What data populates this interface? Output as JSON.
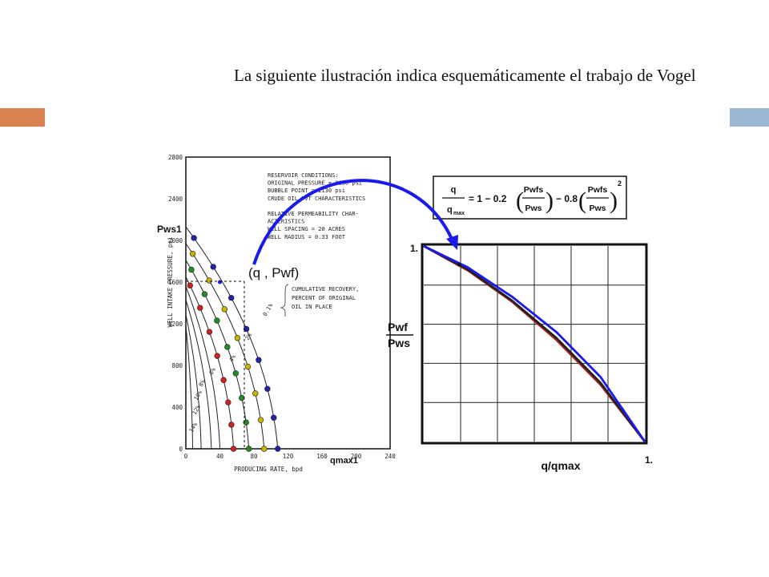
{
  "slide": {
    "title": "La siguiente ilustración indica esquemáticamente el trabajo de Vogel",
    "accent_left": "#d9814f",
    "accent_right": "#9ab7d3"
  },
  "left_chart_text": {
    "y_label_top": "Pws1",
    "point_label": "(q , Pwf)",
    "x_end_label": "qmax1",
    "y_axis_title": "WELL INTAKE PRESSURE, psi",
    "x_axis_title": "PRODUCING RATE, bpd",
    "reservoir": [
      "RESERVOIR CONDITIONS:",
      "ORIGINAL PRESSURE = 2130 psi",
      "BUBBLE POINT = 2130 psi",
      "CRUDE OIL PVT CHARACTERISTICS",
      "",
      "RELATIVE PERMEABILITY CHAR-",
      "ACTERISTICS",
      "WELL SPACING = 20 ACRES",
      "WELL RADIUS = 0.33 FOOT"
    ],
    "cumulative": [
      "CUMULATIVE RECOVERY,",
      "PERCENT OF ORIGINAL",
      "OIL IN PLACE"
    ],
    "curve_labels": [
      "0.1%",
      "2%",
      "4%",
      "6%",
      "8%",
      "10%",
      "12%",
      "14%"
    ]
  },
  "formula": {
    "lhs_num": "q",
    "lhs_den": "q",
    "lhs_den_sub": "max",
    "rest": "= 1 − 0.2",
    "frac1_num": "Pwfs",
    "frac1_den": "Pws",
    "mid": "− 0.8",
    "frac2_num": "Pwfs",
    "frac2_den": "Pws",
    "exponent": "2"
  },
  "right_chart_text": {
    "y_label_num": "Pwf",
    "y_label_den": "Pws",
    "x_label": "q/qmax",
    "y_top_tick": "1.",
    "x_right_tick": "1."
  },
  "chart_data": [
    {
      "type": "line",
      "title": "",
      "xlabel": "PRODUCING RATE, bpd",
      "ylabel": "WELL INTAKE PRESSURE, psi",
      "xlim": [
        0,
        240
      ],
      "ylim": [
        0,
        2800
      ],
      "x_ticks": [
        "0",
        "40",
        "80",
        "120",
        "160",
        "200",
        "240"
      ],
      "y_ticks": [
        "0",
        "400",
        "800",
        "1200",
        "1600",
        "2000",
        "2400",
        "2800"
      ],
      "series": [
        {
          "name": "0.1%",
          "color": "#2222aa",
          "qmax": 108
        },
        {
          "name": "2%",
          "color": "#c8b400",
          "qmax": 92
        },
        {
          "name": "4%",
          "color": "#228b22",
          "qmax": 74
        },
        {
          "name": "6%",
          "color": "#cc2222",
          "qmax": 56
        },
        {
          "name": "8%",
          "pws": 1560,
          "qmax": 40
        },
        {
          "name": "10%",
          "pws": 1430,
          "qmax": 30
        },
        {
          "name": "12%",
          "pws": 1290,
          "qmax": 18
        },
        {
          "name": "14%",
          "pws": 1180,
          "qmax": 8
        }
      ],
      "marked_point": {
        "q": 40,
        "pwf": 1600
      }
    },
    {
      "type": "line",
      "title": "",
      "xlabel": "q/qmax",
      "ylabel": "Pwf/Pws",
      "xlim": [
        0,
        1
      ],
      "ylim": [
        0,
        1
      ],
      "series": [
        {
          "name": "Vogel",
          "color": "#1a1aee",
          "x": [
            0,
            0.2,
            0.4,
            0.6,
            0.8,
            1.0
          ],
          "y": [
            1.0,
            0.89,
            0.74,
            0.56,
            0.33,
            0.0
          ]
        },
        {
          "name": "dark",
          "color": "#222222",
          "x": [
            0,
            0.2,
            0.4,
            0.6,
            0.8,
            1.0
          ],
          "y": [
            1.0,
            0.88,
            0.72,
            0.53,
            0.3,
            0.0
          ]
        },
        {
          "name": "red",
          "color": "#b02020",
          "x": [
            0,
            0.2,
            0.4,
            0.6,
            0.8,
            1.0
          ],
          "y": [
            1.0,
            0.875,
            0.715,
            0.52,
            0.29,
            0.0
          ]
        }
      ]
    }
  ]
}
